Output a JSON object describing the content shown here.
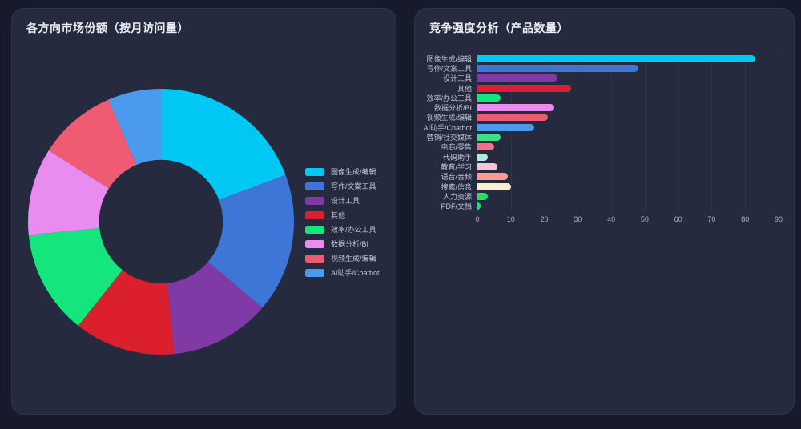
{
  "theme": {
    "page_bg": "#171A2B",
    "card_bg": "#252A3E",
    "card_border": "#2F354D",
    "title_color": "#EDEFF5",
    "label_color": "#C2C7D6",
    "tick_color": "#AEB4C4",
    "gridline_color": "#2E344E"
  },
  "chart_data": [
    {
      "type": "pie",
      "title": "各方向市场份额（按月访问量）",
      "labels": [
        "图像生成/编辑",
        "写作/文案工具",
        "设计工具",
        "其他",
        "效率/办公工具",
        "数据分析/BI",
        "视频生成/编辑",
        "AI助手/Chatbot"
      ],
      "values": [
        19.3,
        16.9,
        12.2,
        12.3,
        12.7,
        10.6,
        9.5,
        6.5
      ],
      "unit": "percent_share",
      "colors": [
        "#00C8F5",
        "#3D76D6",
        "#7F3AA6",
        "#DC1F2D",
        "#14E57C",
        "#EA8BF0",
        "#EE5B72",
        "#4C9AEE"
      ],
      "inner_radius_ratio": 0.465,
      "start_angle": "top",
      "direction": "clockwise",
      "legend_position": "right",
      "data_labels": "none"
    },
    {
      "type": "bar",
      "orientation": "horizontal",
      "title": "竞争强度分析（产品数量）",
      "categories": [
        "图像生成/编辑",
        "写作/文案工具",
        "设计工具",
        "其他",
        "效率/办公工具",
        "数据分析/BI",
        "视频生成/编辑",
        "AI助手/Chatbot",
        "营销/社交媒体",
        "电商/零售",
        "代码助手",
        "教育/学习",
        "语音/音频",
        "搜索/信息",
        "人力资源",
        "PDF/文档"
      ],
      "values": [
        83,
        48,
        24,
        28,
        7,
        23,
        21,
        17,
        7,
        5,
        3,
        6,
        9,
        10,
        3,
        1
      ],
      "colors": [
        "#00C8F5",
        "#3D76D6",
        "#7F3AA6",
        "#DC1F2D",
        "#14E57C",
        "#EA8BF0",
        "#EE5B72",
        "#4C9AEE",
        "#3FDF81",
        "#F2708F",
        "#AFEADD",
        "#F7C3DA",
        "#F99B93",
        "#FBEDD2",
        "#20E366",
        "#20E366"
      ],
      "xlabel": "",
      "ylabel": "",
      "xlim": [
        0,
        90
      ],
      "xticks": [
        0,
        10,
        20,
        30,
        40,
        50,
        60,
        70,
        80,
        90
      ],
      "grid": "vertical",
      "data_labels": "none"
    }
  ]
}
